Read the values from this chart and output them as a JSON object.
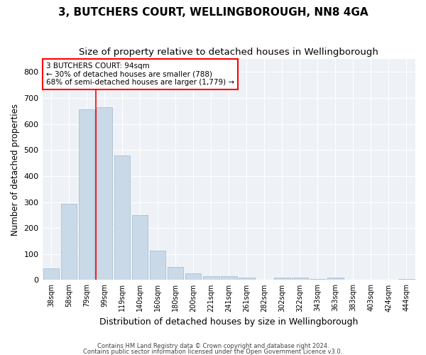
{
  "title": "3, BUTCHERS COURT, WELLINGBOROUGH, NN8 4GA",
  "subtitle": "Size of property relative to detached houses in Wellingborough",
  "xlabel": "Distribution of detached houses by size in Wellingborough",
  "ylabel": "Number of detached properties",
  "categories": [
    "38sqm",
    "58sqm",
    "79sqm",
    "99sqm",
    "119sqm",
    "140sqm",
    "160sqm",
    "180sqm",
    "200sqm",
    "221sqm",
    "241sqm",
    "261sqm",
    "282sqm",
    "302sqm",
    "322sqm",
    "343sqm",
    "363sqm",
    "383sqm",
    "403sqm",
    "424sqm",
    "444sqm"
  ],
  "values": [
    45,
    293,
    655,
    665,
    478,
    250,
    113,
    50,
    27,
    14,
    14,
    8,
    2,
    8,
    8,
    4,
    8,
    1,
    1,
    1,
    4
  ],
  "bar_color": "#c9d9e8",
  "bar_edgecolor": "#a8c0d4",
  "vline_x": 2.5,
  "annotation_text": "3 BUTCHERS COURT: 94sqm\n← 30% of detached houses are smaller (788)\n68% of semi-detached houses are larger (1,779) →",
  "annotation_box_color": "white",
  "annotation_box_edgecolor": "red",
  "vline_color": "red",
  "footer1": "Contains HM Land Registry data © Crown copyright and database right 2024.",
  "footer2": "Contains public sector information licensed under the Open Government Licence v3.0.",
  "ylim": [
    0,
    850
  ],
  "yticks": [
    0,
    100,
    200,
    300,
    400,
    500,
    600,
    700,
    800
  ],
  "background_color": "#eef2f7",
  "title_fontsize": 11,
  "subtitle_fontsize": 9.5,
  "xlabel_fontsize": 9,
  "ylabel_fontsize": 8.5
}
